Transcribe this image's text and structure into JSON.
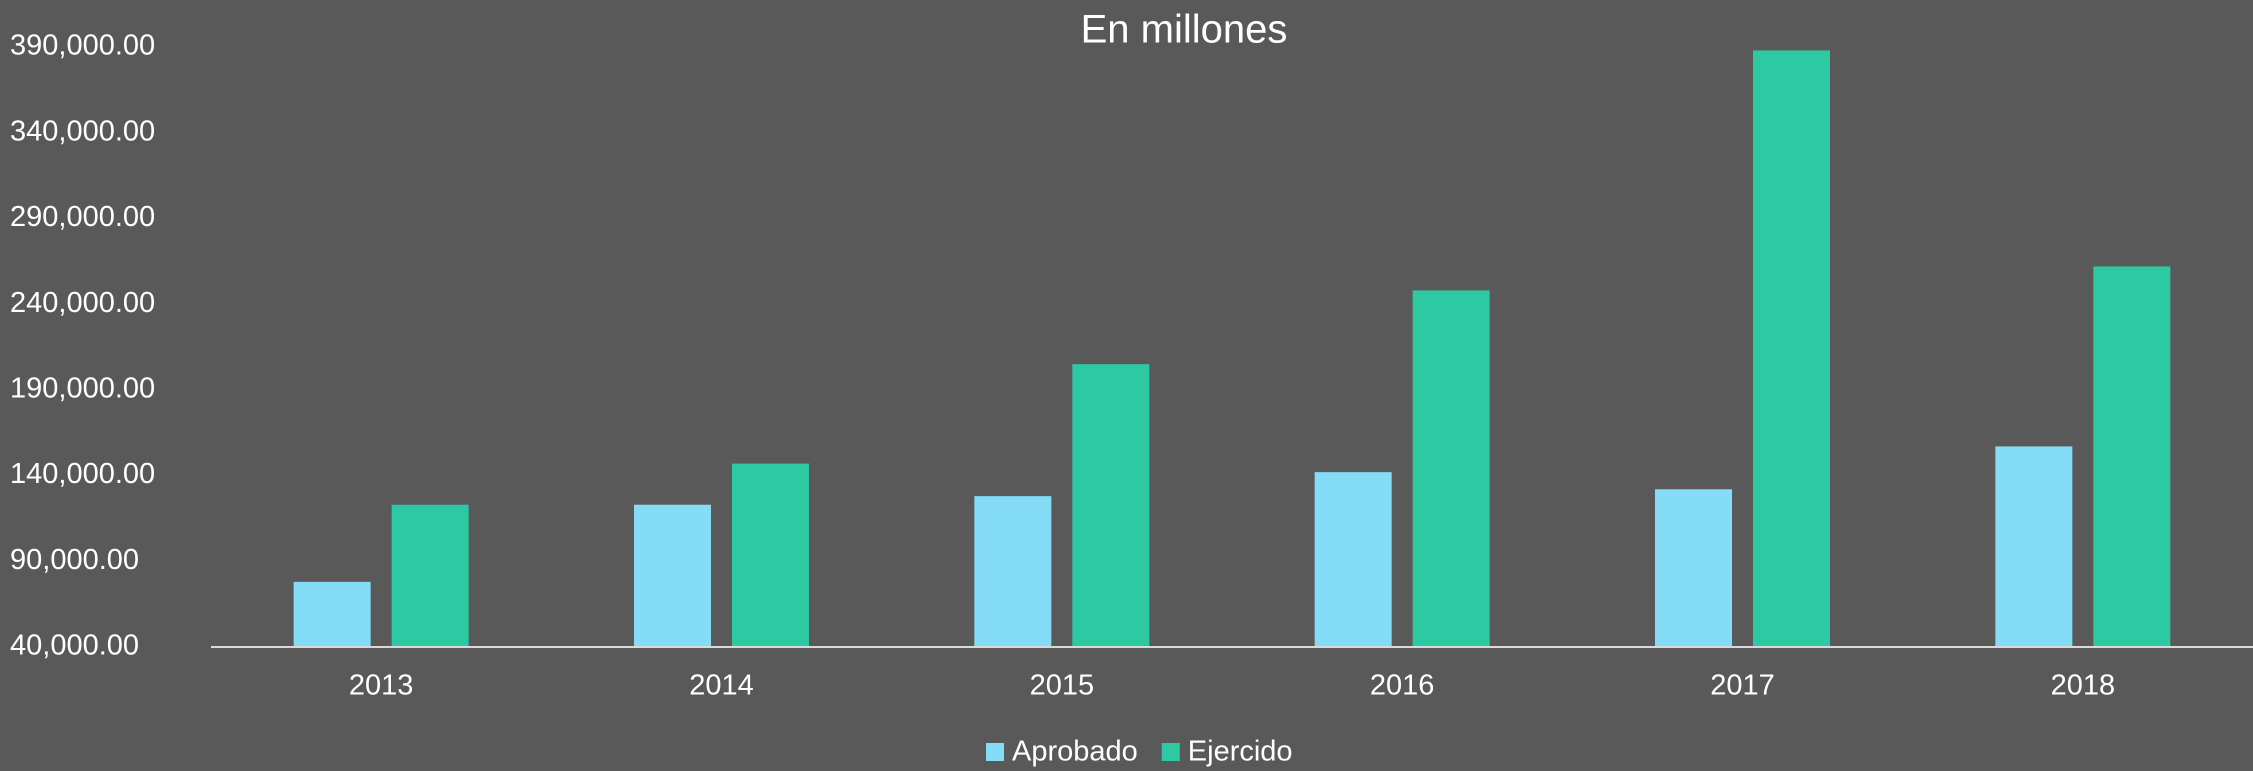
{
  "chart_data": {
    "type": "bar",
    "title": "En millones",
    "categories": [
      "2013",
      "2014",
      "2015",
      "2016",
      "2017",
      "2018"
    ],
    "series": [
      {
        "name": "Aprobado",
        "color": "#85dcf7",
        "values": [
          78000,
          123000,
          128000,
          142000,
          132000,
          157000
        ]
      },
      {
        "name": "Ejercido",
        "color": "#2dc9a2",
        "values": [
          123000,
          147000,
          205000,
          248000,
          388000,
          262000
        ]
      }
    ],
    "ylim": [
      40000,
      390000
    ],
    "yticks": [
      {
        "value": 40000,
        "label": "40,000.00"
      },
      {
        "value": 90000,
        "label": "90,000.00"
      },
      {
        "value": 140000,
        "label": "140,000.00"
      },
      {
        "value": 190000,
        "label": "190,000.00"
      },
      {
        "value": 240000,
        "label": "240,000.00"
      },
      {
        "value": 290000,
        "label": "290,000.00"
      },
      {
        "value": 340000,
        "label": "340,000.00"
      },
      {
        "value": 390000,
        "label": "390,000.00"
      }
    ],
    "grid": false,
    "legend": "bottom"
  }
}
